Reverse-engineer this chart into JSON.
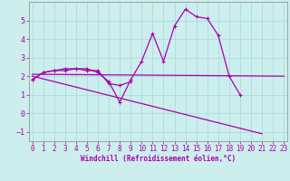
{
  "xlabel": "Windchill (Refroidissement éolien,°C)",
  "background_color": "#cceeed",
  "grid_color": "#aadddd",
  "line_color": "#aa00aa",
  "x": [
    0,
    1,
    2,
    3,
    4,
    5,
    6,
    7,
    8,
    9,
    10,
    11,
    12,
    13,
    14,
    15,
    16,
    17,
    18,
    19,
    20,
    21,
    22,
    23
  ],
  "curve1": [
    1.8,
    2.2,
    2.3,
    2.3,
    2.4,
    2.4,
    2.2,
    1.7,
    0.6,
    1.8,
    2.8,
    4.3,
    2.8,
    4.7,
    5.6,
    5.2,
    5.1,
    4.2,
    2.0,
    1.0,
    null,
    null,
    null,
    null
  ],
  "curve2": [
    1.8,
    2.2,
    2.3,
    2.4,
    2.4,
    2.3,
    2.3,
    1.6,
    1.5,
    1.7,
    null,
    null,
    null,
    null,
    null,
    null,
    null,
    null,
    null,
    null,
    null,
    null,
    null,
    null
  ],
  "curve3_x": [
    0,
    23
  ],
  "curve3_y": [
    2.1,
    2.0
  ],
  "curve4_x": [
    0,
    21
  ],
  "curve4_y": [
    2.0,
    -1.1
  ],
  "ylim": [
    -1.5,
    6.0
  ],
  "xlim": [
    -0.3,
    23.3
  ],
  "yticks": [
    -1,
    0,
    1,
    2,
    3,
    4,
    5
  ],
  "xticks": [
    0,
    1,
    2,
    3,
    4,
    5,
    6,
    7,
    8,
    9,
    10,
    11,
    12,
    13,
    14,
    15,
    16,
    17,
    18,
    19,
    20,
    21,
    22,
    23
  ],
  "xlabel_fontsize": 5.5,
  "tick_fontsize": 5.5,
  "line_width": 0.9,
  "marker_size": 2.5
}
